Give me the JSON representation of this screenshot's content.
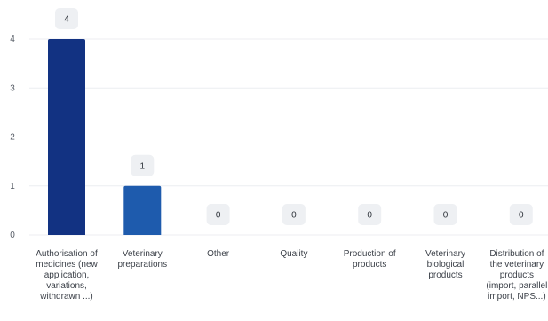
{
  "chart_data": {
    "type": "bar",
    "categories": [
      "Authorisation of medicines (new application, variations, withdrawn ...)",
      "Veterinary preparations",
      "Other",
      "Quality",
      "Production of products",
      "Veterinary biological products",
      "Distribution of the veterinary products (import, parallel import, NPS...)"
    ],
    "values": [
      4,
      1,
      0,
      0,
      0,
      0,
      0
    ],
    "value_labels": [
      "4",
      "1",
      "0",
      "0",
      "0",
      "0",
      "0"
    ],
    "ylim": [
      0,
      4
    ],
    "yticks": [
      0,
      1,
      2,
      3,
      4
    ],
    "ytick_labels": [
      "0",
      "1",
      "2",
      "3",
      "4"
    ],
    "grid": true,
    "legend": "none",
    "bar_colors": [
      "#123282",
      "#1e5bad",
      "#1e5bad",
      "#1e5bad",
      "#1e5bad",
      "#1e5bad",
      "#1e5bad"
    ],
    "label_badge_color": "#eef0f3",
    "gridline_color": "#eceef1",
    "title": "",
    "xlabel": "",
    "ylabel": ""
  }
}
